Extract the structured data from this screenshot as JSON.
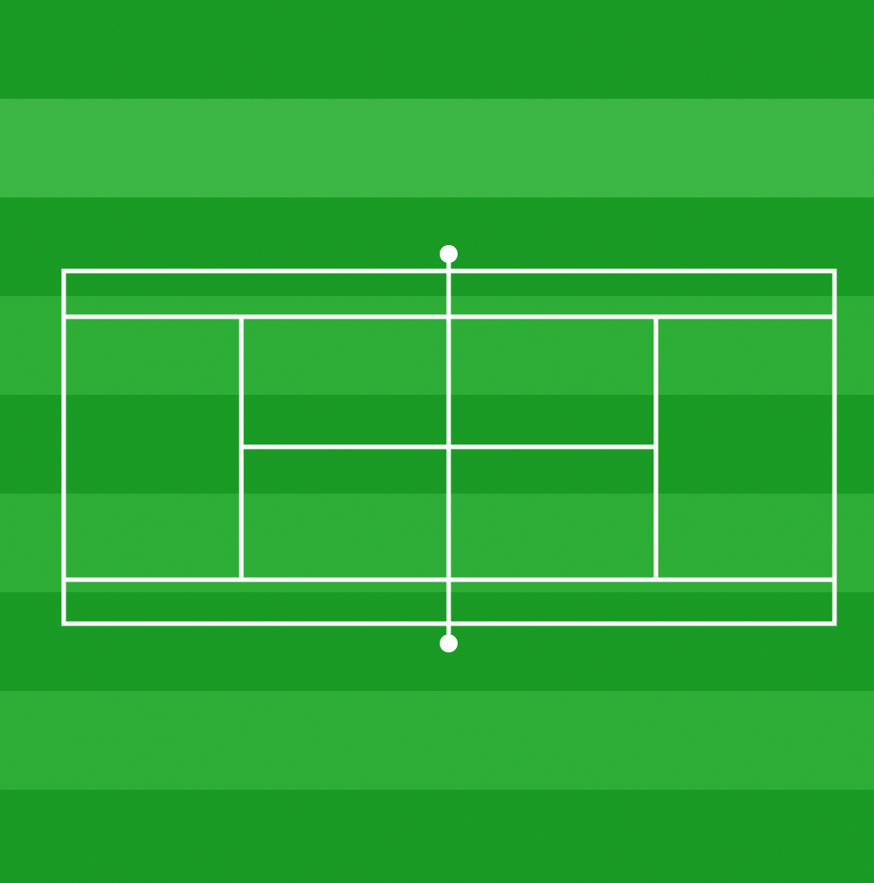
{
  "scene": {
    "subject": "tennis-court",
    "surface": "grass",
    "view": "top-down"
  },
  "colors": {
    "grass_dark": "#169a22",
    "grass_mid": "#20a42c",
    "grass_light": "#2caf36",
    "grass_highlight": "#45bd4c",
    "lines": "#ffffff"
  },
  "icons": {
    "net_post": "circle"
  }
}
